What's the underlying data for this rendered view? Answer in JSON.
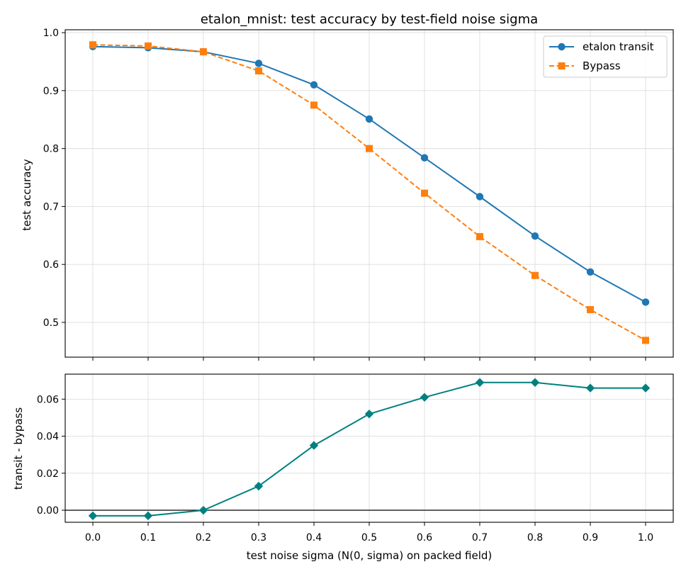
{
  "chart_data": [
    {
      "type": "line",
      "title": "etalon_mnist: test accuracy by test-field noise sigma",
      "xlabel": "",
      "ylabel": "test accuracy",
      "x": [
        0.0,
        0.1,
        0.2,
        0.3,
        0.4,
        0.5,
        0.6,
        0.7,
        0.8,
        0.9,
        1.0
      ],
      "xlim": [
        -0.05,
        1.05
      ],
      "ylim": [
        0.44,
        1.005
      ],
      "yticks": [
        "0.5",
        "0.6",
        "0.7",
        "0.8",
        "0.9",
        "1.0"
      ],
      "grid": true,
      "legend_position": "top-right",
      "series": [
        {
          "name": "etalon transit",
          "color": "#1f77b4",
          "marker": "circle",
          "linestyle": "solid",
          "values": [
            0.976,
            0.974,
            0.967,
            0.947,
            0.91,
            0.851,
            0.784,
            0.717,
            0.649,
            0.587,
            0.535
          ]
        },
        {
          "name": "Bypass",
          "color": "#ff7f0e",
          "marker": "square",
          "linestyle": "dashed",
          "values": [
            0.979,
            0.977,
            0.967,
            0.934,
            0.875,
            0.8,
            0.723,
            0.648,
            0.581,
            0.522,
            0.469
          ]
        }
      ]
    },
    {
      "type": "line",
      "title": "",
      "xlabel": "test noise sigma (N(0, sigma) on packed field)",
      "ylabel": "transit - bypass",
      "x": [
        0.0,
        0.1,
        0.2,
        0.3,
        0.4,
        0.5,
        0.6,
        0.7,
        0.8,
        0.9,
        1.0
      ],
      "xticks": [
        "0.0",
        "0.1",
        "0.2",
        "0.3",
        "0.4",
        "0.5",
        "0.6",
        "0.7",
        "0.8",
        "0.9",
        "1.0"
      ],
      "xlim": [
        -0.05,
        1.05
      ],
      "ylim": [
        -0.0065,
        0.0735
      ],
      "yticks": [
        "0.00",
        "0.02",
        "0.04",
        "0.06"
      ],
      "grid": true,
      "reference_line": 0,
      "series": [
        {
          "name": "",
          "color": "#008080",
          "marker": "diamond",
          "linestyle": "solid",
          "values": [
            -0.003,
            -0.003,
            0.0,
            0.013,
            0.035,
            0.052,
            0.061,
            0.069,
            0.069,
            0.066,
            0.066
          ]
        }
      ]
    }
  ]
}
